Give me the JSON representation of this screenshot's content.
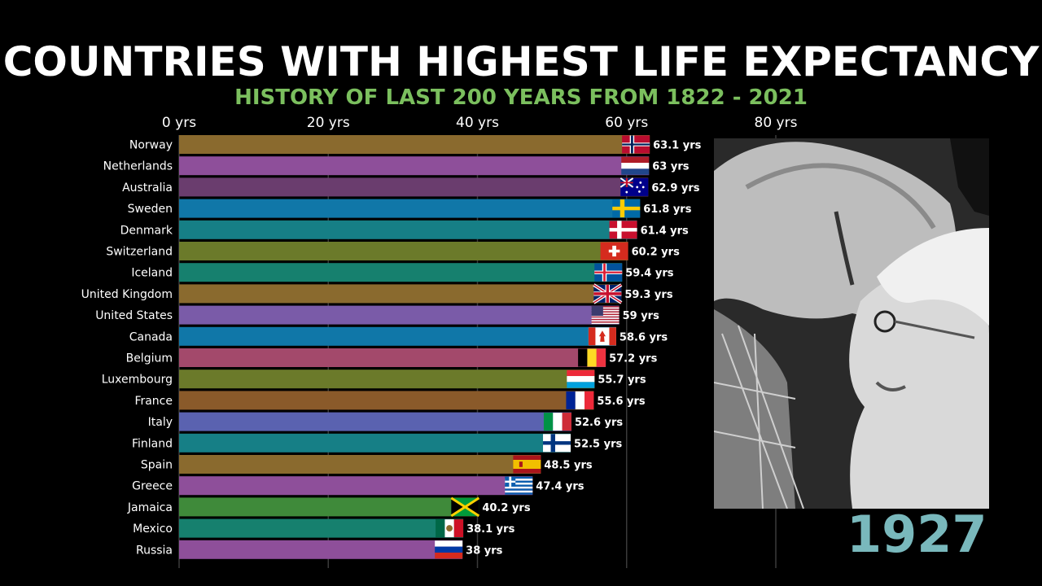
{
  "header": {
    "title": "COUNTRIES WITH HIGHEST LIFE EXPECTANCY",
    "subtitle": "HISTORY OF LAST 200 YEARS FROM 1822 - 2021"
  },
  "year_label": "1927",
  "chart_data": {
    "type": "bar",
    "orientation": "horizontal",
    "xlim": [
      0,
      80
    ],
    "x_ticks": [
      0,
      20,
      40,
      60,
      80
    ],
    "x_tick_labels": [
      "0 yrs",
      "20 yrs",
      "40 yrs",
      "60 yrs",
      "80 yrs"
    ],
    "grid": true,
    "categories": [
      "Norway",
      "Netherlands",
      "Australia",
      "Sweden",
      "Denmark",
      "Switzerland",
      "Iceland",
      "United Kingdom",
      "United States",
      "Canada",
      "Belgium",
      "Luxembourg",
      "France",
      "Italy",
      "Finland",
      "Spain",
      "Greece",
      "Jamaica",
      "Mexico",
      "Russia"
    ],
    "values": [
      63.1,
      63,
      62.9,
      61.8,
      61.4,
      60.2,
      59.4,
      59.3,
      59,
      58.6,
      57.2,
      55.7,
      55.6,
      52.6,
      52.5,
      48.5,
      47.4,
      40.2,
      38.1,
      38
    ],
    "value_labels": [
      "63.1 yrs",
      "63 yrs",
      "62.9 yrs",
      "61.8 yrs",
      "61.4 yrs",
      "60.2 yrs",
      "59.4 yrs",
      "59.3 yrs",
      "59 yrs",
      "58.6 yrs",
      "57.2 yrs",
      "55.7 yrs",
      "55.6 yrs",
      "52.6 yrs",
      "52.5 yrs",
      "48.5 yrs",
      "47.4 yrs",
      "40.2 yrs",
      "38.1 yrs",
      "38 yrs"
    ],
    "colors": [
      "#8a6a2e",
      "#8e4f9a",
      "#6a3d6e",
      "#1077a8",
      "#167f86",
      "#6b7a2a",
      "#16806e",
      "#8a6a2e",
      "#7a5ba8",
      "#1077a8",
      "#a3496b",
      "#6b7a2a",
      "#8a5a2a",
      "#5a62b0",
      "#167f86",
      "#8a6a2e",
      "#8e4f9a",
      "#3f8a3a",
      "#16806e",
      "#8e4f9a"
    ],
    "flags": [
      "norway",
      "netherlands",
      "australia",
      "sweden",
      "denmark",
      "switzerland",
      "iceland",
      "united-kingdom",
      "united-states",
      "canada",
      "belgium",
      "luxembourg",
      "france",
      "italy",
      "finland",
      "spain",
      "greece",
      "jamaica",
      "mexico",
      "russia"
    ]
  }
}
